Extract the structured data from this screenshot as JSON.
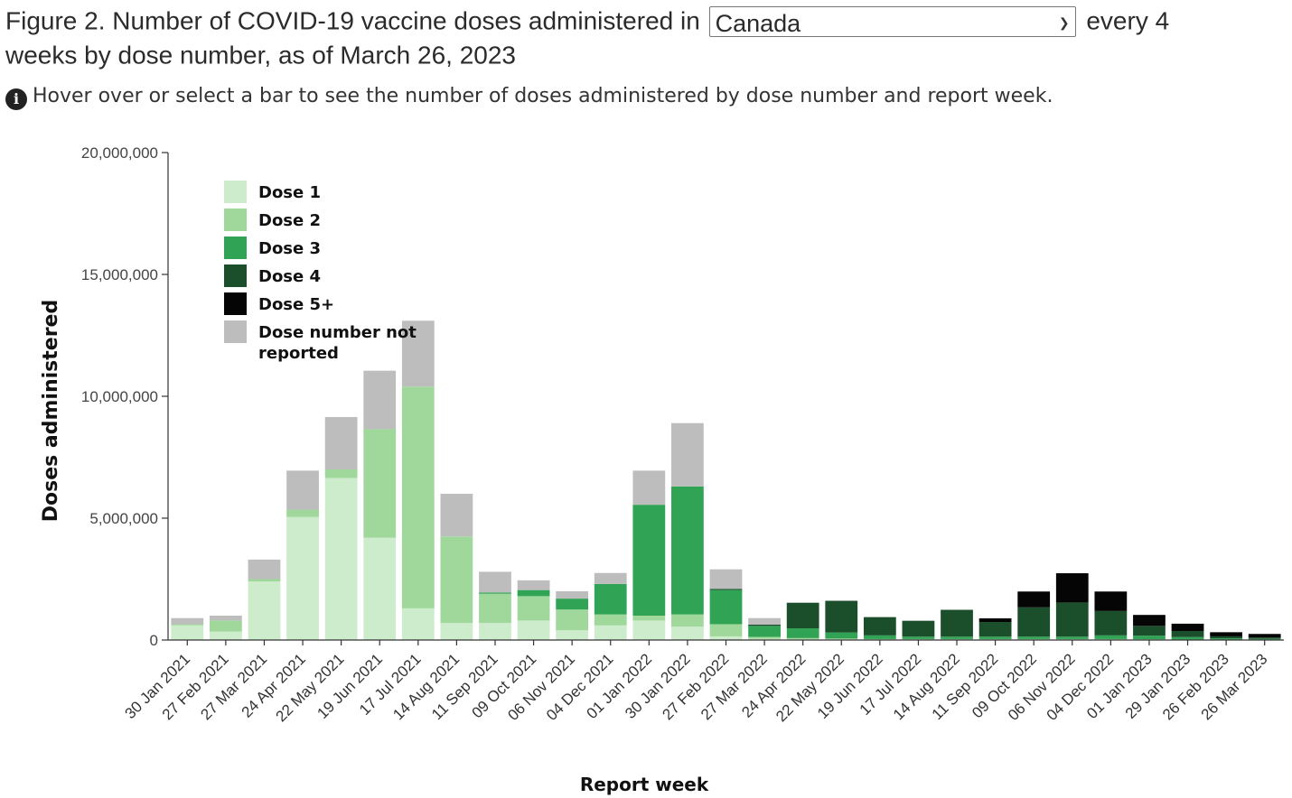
{
  "header": {
    "title_prefix": "Figure 2. Number of COVID-19 vaccine doses administered in",
    "selected_region": "Canada",
    "title_suffix_1": "every 4",
    "title_line2": "weeks by dose number, as of March 26, 2023"
  },
  "note": {
    "icon": "info-circle-icon",
    "text": "Hover over or select a bar to see the number of doses administered by dose number and report week."
  },
  "chart_data": {
    "type": "bar",
    "stacked": true,
    "ylabel": "Doses administered",
    "xlabel": "Report week",
    "ylim": [
      0,
      20000000
    ],
    "yticks": [
      0,
      5000000,
      10000000,
      15000000,
      20000000
    ],
    "ytick_labels": [
      "0",
      "5,000,000",
      "10,000,000",
      "15,000,000",
      "20,000,000"
    ],
    "legend_position": "top-left",
    "categories": [
      "30 Jan 2021",
      "27 Feb 2021",
      "27 Mar 2021",
      "24 Apr 2021",
      "22 May 2021",
      "19 Jun 2021",
      "17 Jul 2021",
      "14 Aug 2021",
      "11 Sep 2021",
      "09 Oct 2021",
      "06 Nov 2021",
      "04 Dec 2021",
      "01 Jan 2022",
      "30 Jan 2022",
      "27 Feb 2022",
      "27 Mar 2022",
      "24 Apr 2022",
      "22 May 2022",
      "19 Jun 2022",
      "17 Jul 2022",
      "14 Aug 2022",
      "11 Sep 2022",
      "09 Oct 2022",
      "06 Nov 2022",
      "04 Dec 2022",
      "01 Jan 2023",
      "29 Jan 2023",
      "26 Feb 2023",
      "26 Mar 2023"
    ],
    "series": [
      {
        "name": "Dose 1",
        "color": "#cdeccb",
        "values": [
          600000,
          350000,
          2400000,
          5050000,
          6650000,
          4200000,
          1300000,
          700000,
          700000,
          800000,
          400000,
          600000,
          800000,
          550000,
          150000,
          50000,
          30000,
          30000,
          20000,
          20000,
          20000,
          20000,
          20000,
          20000,
          20000,
          15000,
          10000,
          10000,
          10000
        ]
      },
      {
        "name": "Dose 2",
        "color": "#9fd89a",
        "values": [
          50000,
          450000,
          100000,
          300000,
          350000,
          4450000,
          9100000,
          3550000,
          1200000,
          1000000,
          850000,
          450000,
          200000,
          500000,
          500000,
          80000,
          50000,
          30000,
          20000,
          20000,
          20000,
          20000,
          20000,
          20000,
          20000,
          15000,
          10000,
          10000,
          10000
        ]
      },
      {
        "name": "Dose 3",
        "color": "#31a354",
        "values": [
          0,
          0,
          0,
          0,
          0,
          0,
          0,
          0,
          50000,
          250000,
          450000,
          1250000,
          4550000,
          5250000,
          1400000,
          450000,
          400000,
          250000,
          150000,
          100000,
          100000,
          100000,
          100000,
          100000,
          150000,
          150000,
          100000,
          50000,
          30000
        ]
      },
      {
        "name": "Dose 4",
        "color": "#1b4f2b",
        "values": [
          0,
          0,
          0,
          0,
          0,
          0,
          0,
          0,
          0,
          0,
          0,
          0,
          0,
          0,
          50000,
          50000,
          1050000,
          1300000,
          750000,
          650000,
          1100000,
          600000,
          1200000,
          1400000,
          1000000,
          400000,
          250000,
          80000,
          50000
        ]
      },
      {
        "name": "Dose 5+",
        "color": "#050505",
        "values": [
          0,
          0,
          0,
          0,
          0,
          0,
          0,
          0,
          0,
          0,
          0,
          0,
          0,
          0,
          0,
          0,
          0,
          0,
          0,
          0,
          0,
          150000,
          650000,
          1200000,
          800000,
          450000,
          300000,
          170000,
          150000
        ]
      },
      {
        "name": "Dose number not reported",
        "color": "#bdbdbd",
        "values": [
          250000,
          200000,
          800000,
          1600000,
          2150000,
          2400000,
          2700000,
          1750000,
          850000,
          400000,
          300000,
          450000,
          1400000,
          2600000,
          800000,
          270000,
          0,
          0,
          0,
          0,
          0,
          0,
          0,
          0,
          0,
          0,
          0,
          0,
          0
        ]
      }
    ]
  }
}
